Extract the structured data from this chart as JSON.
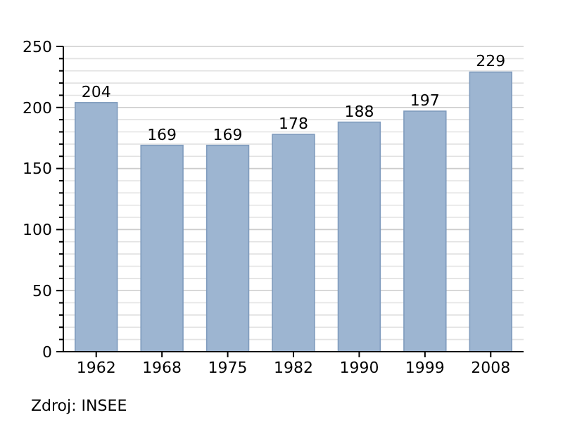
{
  "chart_data": {
    "type": "bar",
    "categories": [
      "1962",
      "1968",
      "1975",
      "1982",
      "1990",
      "1999",
      "2008"
    ],
    "values": [
      204,
      169,
      169,
      178,
      188,
      197,
      229
    ],
    "color": "#9db5d1",
    "ylim": [
      0,
      250
    ],
    "yticks": [
      0,
      {
        "value": 10,
        "label": null
      },
      {
        "value": 20,
        "label": null
      },
      {
        "value": 30,
        "label": null
      },
      {
        "value": 40,
        "label": null
      },
      50,
      {
        "value": 60,
        "label": null
      },
      {
        "value": 70,
        "label": null
      },
      {
        "value": 80,
        "label": null
      },
      {
        "value": 90,
        "label": null
      },
      100,
      {
        "value": 110,
        "label": null
      },
      {
        "value": 120,
        "label": null
      },
      {
        "value": 130,
        "label": null
      },
      {
        "value": 140,
        "label": null
      },
      150,
      {
        "value": 160,
        "label": null
      },
      {
        "value": 170,
        "label": null
      },
      {
        "value": 180,
        "label": null
      },
      {
        "value": 190,
        "label": null
      },
      200,
      {
        "value": 210,
        "label": null
      },
      {
        "value": 220,
        "label": null
      },
      {
        "value": 230,
        "label": null
      },
      {
        "value": 240,
        "label": null
      },
      250
    ],
    "grid": "y",
    "data_labels": true,
    "annotations": [
      "Zdroj: INSEE"
    ]
  }
}
